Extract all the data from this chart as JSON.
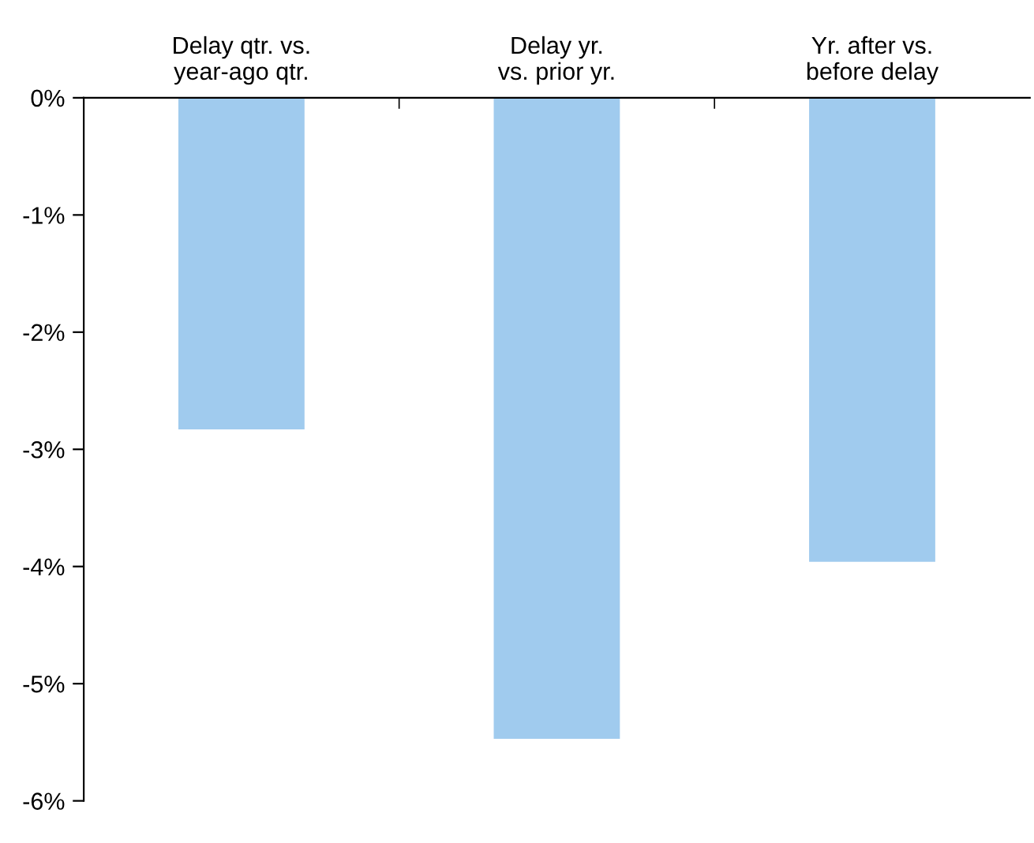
{
  "chart_data": {
    "type": "bar",
    "categories": [
      "Delay qtr. vs.\nyear-ago qtr.",
      "Delay yr.\nvs. prior yr.",
      "Yr. after vs.\nbefore delay"
    ],
    "values": [
      -2.83,
      -5.47,
      -3.96
    ],
    "color": "#a0cbee",
    "ylim": [
      -6,
      0
    ],
    "yticks": [
      {
        "value": 0,
        "label": "0%"
      },
      {
        "value": -1,
        "label": "-1%"
      },
      {
        "value": -2,
        "label": "-2%"
      },
      {
        "value": -3,
        "label": "-3%"
      },
      {
        "value": -4,
        "label": "-4%"
      },
      {
        "value": -5,
        "label": "-5%"
      },
      {
        "value": -6,
        "label": "-6%"
      }
    ],
    "grid": false,
    "legend": false
  }
}
